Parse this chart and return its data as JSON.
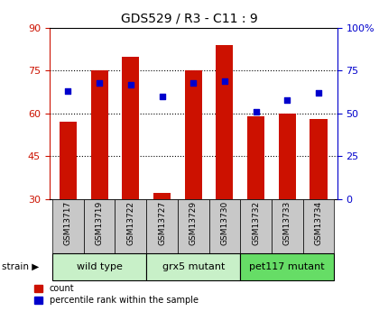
{
  "title": "GDS529 / R3 - C11 : 9",
  "samples": [
    "GSM13717",
    "GSM13719",
    "GSM13722",
    "GSM13727",
    "GSM13729",
    "GSM13730",
    "GSM13732",
    "GSM13733",
    "GSM13734"
  ],
  "counts": [
    57,
    75,
    80,
    32,
    75,
    84,
    59,
    60,
    58
  ],
  "percentile_ranks": [
    63,
    68,
    67,
    60,
    68,
    69,
    51,
    58,
    62
  ],
  "groups": [
    {
      "label": "wild type",
      "start": 0,
      "end": 3,
      "color": "#c8f0c8"
    },
    {
      "label": "grx5 mutant",
      "start": 3,
      "end": 6,
      "color": "#c8f0c8"
    },
    {
      "label": "pet117 mutant",
      "start": 6,
      "end": 9,
      "color": "#66dd66"
    }
  ],
  "ylim_left": [
    30,
    90
  ],
  "ylim_right": [
    0,
    100
  ],
  "yticks_left": [
    30,
    45,
    60,
    75,
    90
  ],
  "yticks_right": [
    0,
    25,
    50,
    75,
    100
  ],
  "ytick_labels_right": [
    "0",
    "25",
    "50",
    "75",
    "100%"
  ],
  "bar_color": "#cc1100",
  "dot_color": "#0000cc",
  "bar_width": 0.55,
  "left_tick_color": "#cc1100",
  "right_tick_color": "#0000cc",
  "tick_label_bg": "#c8c8c8",
  "group_box_lighter": "#c8f0c8",
  "group_box_darker": "#66dd66"
}
